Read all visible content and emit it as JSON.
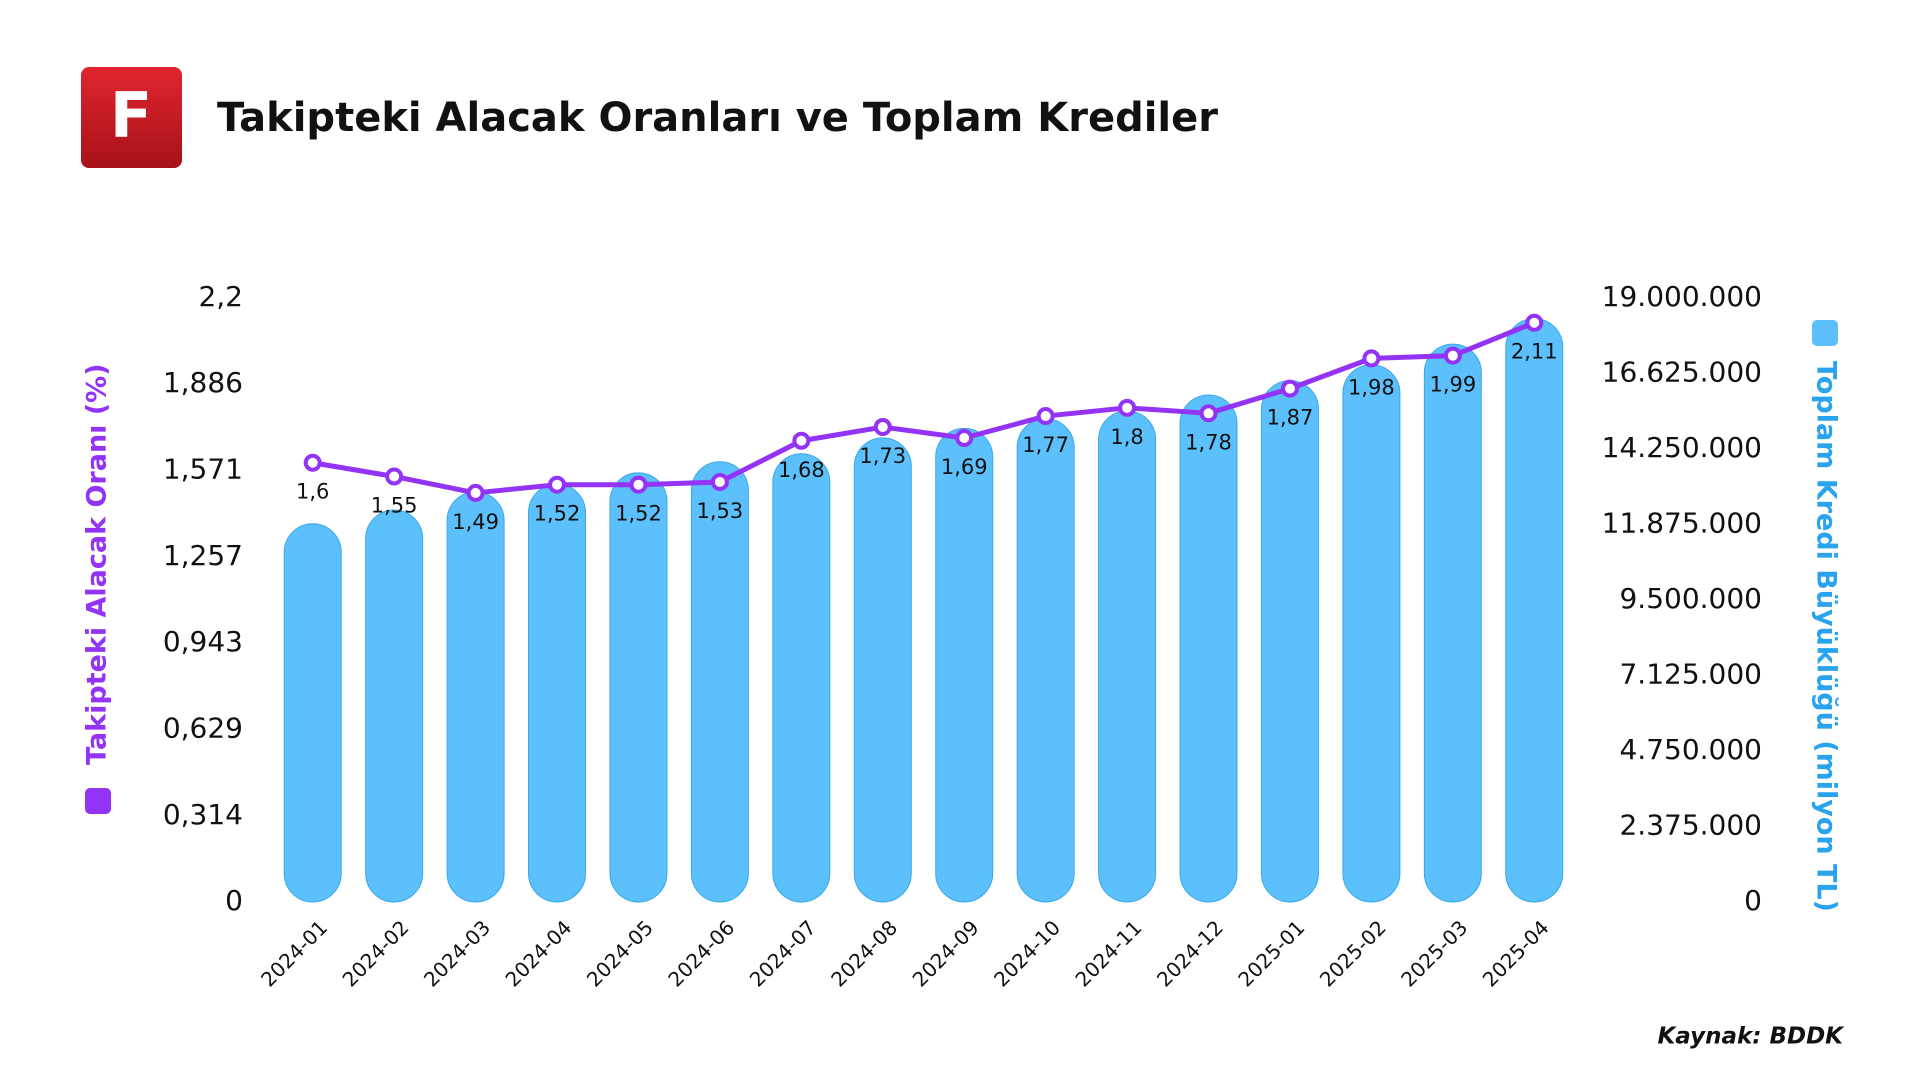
{
  "logo": "F",
  "chart_data": {
    "type": "combo",
    "title": "Takipteki Alacak Oranları ve Toplam Krediler",
    "source": "Kaynak: BDDK",
    "categories": [
      "2024-01",
      "2024-02",
      "2024-03",
      "2024-04",
      "2024-05",
      "2024-06",
      "2024-07",
      "2024-08",
      "2024-09",
      "2024-10",
      "2024-11",
      "2024-12",
      "2025-01",
      "2025-02",
      "2025-03",
      "2025-04"
    ],
    "series": [
      {
        "name": "Toplam Kredi Büyüklüğü (milyon TL)",
        "type": "bar",
        "axis": "y2",
        "color": "#5bc0fb",
        "values": [
          11900000,
          12330000,
          12900000,
          13150000,
          13500000,
          13850000,
          14100000,
          14600000,
          14900000,
          15200000,
          15450000,
          15950000,
          16400000,
          16900000,
          17550000,
          18350000
        ]
      },
      {
        "name": "Takipteki Alacak Oranı (%)",
        "type": "line",
        "axis": "y",
        "color": "#9333f5",
        "values": [
          1.6,
          1.55,
          1.49,
          1.52,
          1.52,
          1.53,
          1.68,
          1.73,
          1.69,
          1.77,
          1.8,
          1.78,
          1.87,
          1.98,
          1.99,
          2.11
        ],
        "value_labels": [
          "1,6",
          "1,55",
          "1,49",
          "1,52",
          "1,52",
          "1,53",
          "1,68",
          "1,73",
          "1,69",
          "1,77",
          "1,8",
          "1,78",
          "1,87",
          "1,98",
          "1,99",
          "2,11"
        ]
      }
    ],
    "ylim": [
      0,
      2.2
    ],
    "yticks": [
      0,
      {
        "value": 0.314,
        "label": "0,314"
      },
      {
        "value": 0.629,
        "label": "0,629"
      },
      {
        "value": 0.943,
        "label": "0,943"
      },
      {
        "value": 1.257,
        "label": "1,257"
      },
      {
        "value": 1.571,
        "label": "1,571"
      },
      {
        "value": 1.886,
        "label": "1,886"
      },
      {
        "value": 2.2,
        "label": "2,2"
      }
    ],
    "y2lim": [
      0,
      19000000
    ],
    "y2ticks": [
      0,
      {
        "value": 2375000,
        "label": "2.375.000"
      },
      {
        "value": 4750000,
        "label": "4.750.000"
      },
      {
        "value": 7125000,
        "label": "7.125.000"
      },
      {
        "value": 9500000,
        "label": "9.500.000"
      },
      {
        "value": 11875000,
        "label": "11.875.000"
      },
      {
        "value": 14250000,
        "label": "14.250.000"
      },
      {
        "value": 16625000,
        "label": "16.625.000"
      },
      {
        "value": 19000000,
        "label": "19.000.000"
      }
    ],
    "grid": false
  }
}
